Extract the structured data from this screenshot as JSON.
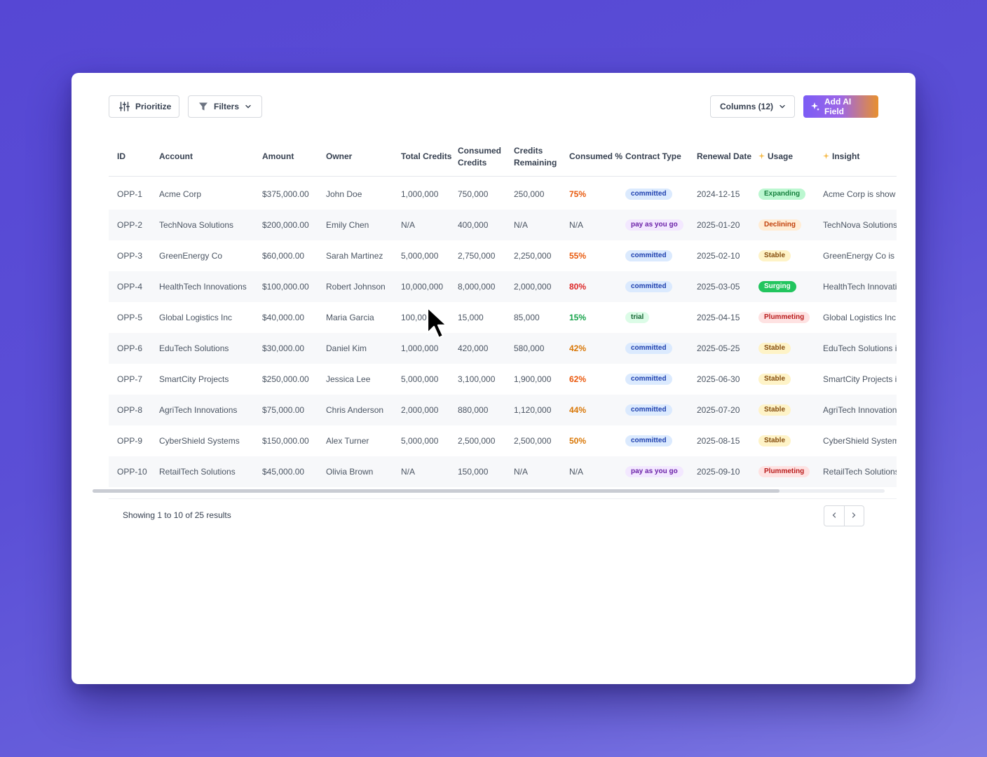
{
  "toolbar": {
    "prioritize_label": "Prioritize",
    "filters_label": "Filters",
    "columns_label": "Columns (12)",
    "add_ai_label": "Add AI Field"
  },
  "table": {
    "columns": [
      {
        "key": "id",
        "label": "ID"
      },
      {
        "key": "account",
        "label": "Account"
      },
      {
        "key": "amount",
        "label": "Amount"
      },
      {
        "key": "owner",
        "label": "Owner"
      },
      {
        "key": "total",
        "label": "Total Credits"
      },
      {
        "key": "consumed",
        "label": "Consumed Credits"
      },
      {
        "key": "remaining",
        "label": "Credits Remaining"
      },
      {
        "key": "pct",
        "label": "Consumed %"
      },
      {
        "key": "contract",
        "label": "Contract Type"
      },
      {
        "key": "renewal",
        "label": "Renewal Date"
      },
      {
        "key": "usage",
        "label": "Usage",
        "ai": true
      },
      {
        "key": "insight",
        "label": "Insight",
        "ai": true
      }
    ],
    "rows": [
      {
        "id": "OPP-1",
        "account": "Acme Corp",
        "amount": "$375,000.00",
        "owner": "John Doe",
        "total": "1,000,000",
        "consumed": "750,000",
        "remaining": "250,000",
        "pct": "75%",
        "contract": "committed",
        "renewal": "2024-12-15",
        "usage": "Expanding",
        "insight": "Acme Corp is show"
      },
      {
        "id": "OPP-2",
        "account": "TechNova Solutions",
        "amount": "$200,000.00",
        "owner": "Emily Chen",
        "total": "N/A",
        "consumed": "400,000",
        "remaining": "N/A",
        "pct": "N/A",
        "contract": "pay as you go",
        "renewal": "2025-01-20",
        "usage": "Declining",
        "insight": "TechNova Solutions"
      },
      {
        "id": "OPP-3",
        "account": "GreenEnergy Co",
        "amount": "$60,000.00",
        "owner": "Sarah Martinez",
        "total": "5,000,000",
        "consumed": "2,750,000",
        "remaining": "2,250,000",
        "pct": "55%",
        "contract": "committed",
        "renewal": "2025-02-10",
        "usage": "Stable",
        "insight": "GreenEnergy Co is i"
      },
      {
        "id": "OPP-4",
        "account": "HealthTech Innovations",
        "amount": "$100,000.00",
        "owner": "Robert Johnson",
        "total": "10,000,000",
        "consumed": "8,000,000",
        "remaining": "2,000,000",
        "pct": "80%",
        "contract": "committed",
        "renewal": "2025-03-05",
        "usage": "Surging",
        "insight": "HealthTech Innovati"
      },
      {
        "id": "OPP-5",
        "account": "Global Logistics Inc",
        "amount": "$40,000.00",
        "owner": "Maria Garcia",
        "total": "100,000",
        "consumed": "15,000",
        "remaining": "85,000",
        "pct": "15%",
        "contract": "trial",
        "renewal": "2025-04-15",
        "usage": "Plummeting",
        "insight": "Global Logistics Inc"
      },
      {
        "id": "OPP-6",
        "account": "EduTech Solutions",
        "amount": "$30,000.00",
        "owner": "Daniel Kim",
        "total": "1,000,000",
        "consumed": "420,000",
        "remaining": "580,000",
        "pct": "42%",
        "contract": "committed",
        "renewal": "2025-05-25",
        "usage": "Stable",
        "insight": "EduTech Solutions i"
      },
      {
        "id": "OPP-7",
        "account": "SmartCity Projects",
        "amount": "$250,000.00",
        "owner": "Jessica Lee",
        "total": "5,000,000",
        "consumed": "3,100,000",
        "remaining": "1,900,000",
        "pct": "62%",
        "contract": "committed",
        "renewal": "2025-06-30",
        "usage": "Stable",
        "insight": "SmartCity Projects i"
      },
      {
        "id": "OPP-8",
        "account": "AgriTech Innovations",
        "amount": "$75,000.00",
        "owner": "Chris Anderson",
        "total": "2,000,000",
        "consumed": "880,000",
        "remaining": "1,120,000",
        "pct": "44%",
        "contract": "committed",
        "renewal": "2025-07-20",
        "usage": "Stable",
        "insight": "AgriTech Innovation"
      },
      {
        "id": "OPP-9",
        "account": "CyberShield Systems",
        "amount": "$150,000.00",
        "owner": "Alex Turner",
        "total": "5,000,000",
        "consumed": "2,500,000",
        "remaining": "2,500,000",
        "pct": "50%",
        "contract": "committed",
        "renewal": "2025-08-15",
        "usage": "Stable",
        "insight": "CyberShield System"
      },
      {
        "id": "OPP-10",
        "account": "RetailTech Solutions",
        "amount": "$45,000.00",
        "owner": "Olivia Brown",
        "total": "N/A",
        "consumed": "150,000",
        "remaining": "N/A",
        "pct": "N/A",
        "contract": "pay as you go",
        "renewal": "2025-09-10",
        "usage": "Plummeting",
        "insight": "RetailTech Solutions"
      }
    ]
  },
  "colors": {
    "pct": {
      "75%": "#e8590c",
      "55%": "#e8590c",
      "80%": "#dc2626",
      "15%": "#16a34a",
      "42%": "#d97706",
      "62%": "#ea580c",
      "44%": "#d97706",
      "50%": "#d97706",
      "N/A": "#4b5563"
    },
    "contract": {
      "committed": {
        "bg": "#dbeafe",
        "fg": "#1e40af"
      },
      "pay as you go": {
        "bg": "#f3e8ff",
        "fg": "#6b21a8"
      },
      "trial": {
        "bg": "#dcfce7",
        "fg": "#166534"
      }
    },
    "usage": {
      "Expanding": {
        "bg": "#bbf7d0",
        "fg": "#15803d"
      },
      "Declining": {
        "bg": "#ffedd5",
        "fg": "#c2410c"
      },
      "Stable": {
        "bg": "#fef3c7",
        "fg": "#854d0e"
      },
      "Surging": {
        "bg": "#22c55e",
        "fg": "#ffffff"
      },
      "Plummeting": {
        "bg": "#fee2e2",
        "fg": "#b91c1c"
      }
    }
  },
  "footer": {
    "showing": "Showing 1 to 10 of 25 results"
  },
  "icons": {
    "prioritize": "sliders-icon",
    "filters": "funnel-icon",
    "ai": "sparkles-icon",
    "prev": "chevron-left-icon",
    "next": "chevron-right-icon"
  }
}
